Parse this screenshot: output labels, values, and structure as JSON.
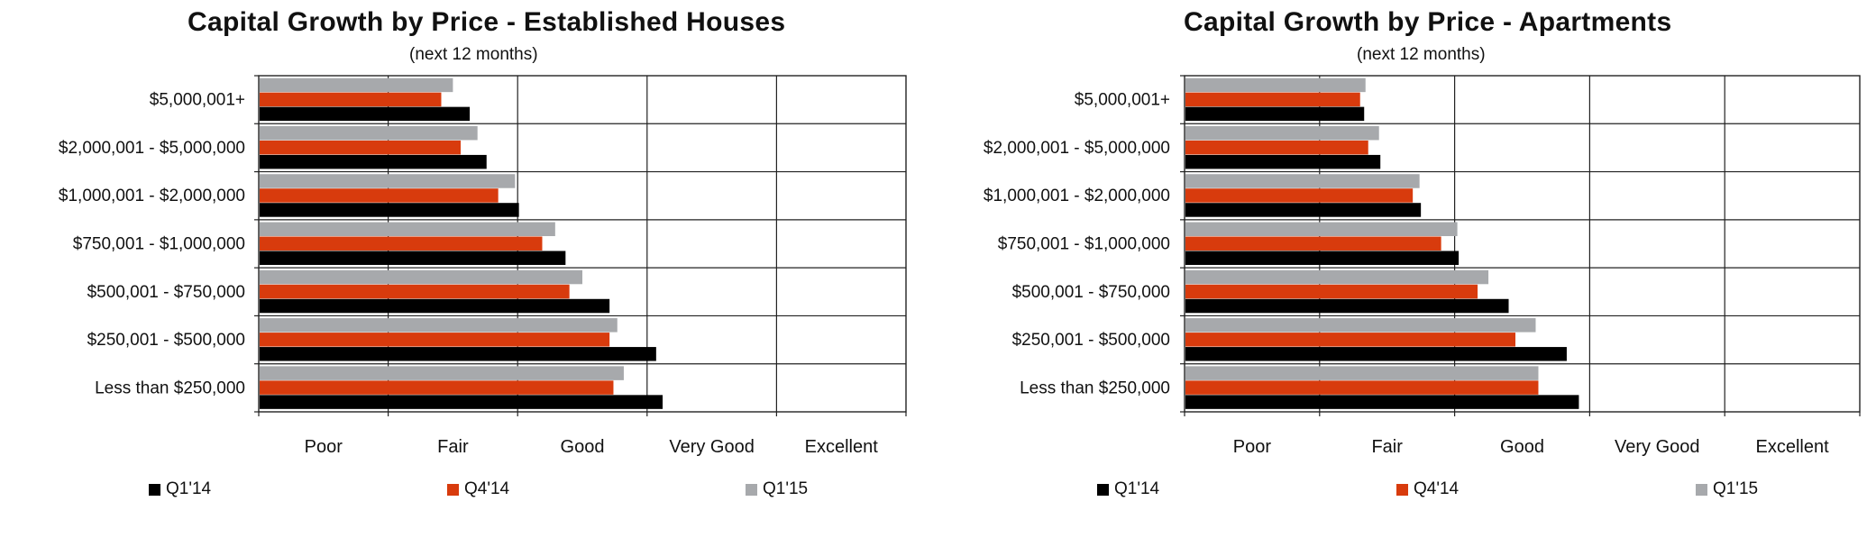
{
  "charts": [
    {
      "title": "Capital Growth by Price - Established Houses",
      "subtitle": "(next 12 months)"
    },
    {
      "title": "Capital Growth by Price - Apartments",
      "subtitle": "(next 12 months)"
    }
  ],
  "chart_data": [
    {
      "type": "bar",
      "orientation": "horizontal",
      "title": "Capital Growth by Price - Established Houses",
      "subtitle": "(next 12 months)",
      "categories": [
        "$5,000,001+",
        "$2,000,001 - $5,000,000",
        "$1,000,001 - $2,000,000",
        "$750,001 - $1,000,000",
        "$500,001 - $750,000",
        "$250,001 - $500,000",
        "Less than $250,000"
      ],
      "x_tick_labels": [
        "Poor",
        "Fair",
        "Good",
        "Very Good",
        "Excellent"
      ],
      "xlim": [
        1,
        6
      ],
      "grid": true,
      "legend_position": "bottom",
      "series": [
        {
          "name": "Q1'14",
          "color": "#000000",
          "values": [
            2.63,
            2.76,
            3.01,
            3.37,
            3.71,
            4.07,
            4.12
          ]
        },
        {
          "name": "Q4'14",
          "color": "#d83b0d",
          "values": [
            2.41,
            2.56,
            2.85,
            3.19,
            3.4,
            3.71,
            3.74
          ]
        },
        {
          "name": "Q1'15",
          "color": "#a7a9ac",
          "values": [
            2.5,
            2.69,
            2.98,
            3.29,
            3.5,
            3.77,
            3.82
          ]
        }
      ]
    },
    {
      "type": "bar",
      "orientation": "horizontal",
      "title": "Capital Growth by Price - Apartments",
      "subtitle": "(next 12 months)",
      "categories": [
        "$5,000,001+",
        "$2,000,001 - $5,000,000",
        "$1,000,001 - $2,000,000",
        "$750,001 - $1,000,000",
        "$500,001 - $750,000",
        "$250,001 - $500,000",
        "Less than $250,000"
      ],
      "x_tick_labels": [
        "Poor",
        "Fair",
        "Good",
        "Very Good",
        "Excellent"
      ],
      "xlim": [
        1,
        6
      ],
      "grid": true,
      "legend_position": "bottom",
      "series": [
        {
          "name": "Q1'14",
          "color": "#000000",
          "values": [
            2.33,
            2.45,
            2.75,
            3.03,
            3.4,
            3.83,
            3.92
          ]
        },
        {
          "name": "Q4'14",
          "color": "#d83b0d",
          "values": [
            2.3,
            2.36,
            2.69,
            2.9,
            3.17,
            3.45,
            3.62
          ]
        },
        {
          "name": "Q1'15",
          "color": "#a7a9ac",
          "values": [
            2.34,
            2.44,
            2.74,
            3.02,
            3.25,
            3.6,
            3.62
          ]
        }
      ]
    }
  ],
  "colors": {
    "q1_14": "#000000",
    "q4_14": "#d83b0d",
    "q1_15": "#a7a9ac",
    "gridline": "#222222"
  }
}
